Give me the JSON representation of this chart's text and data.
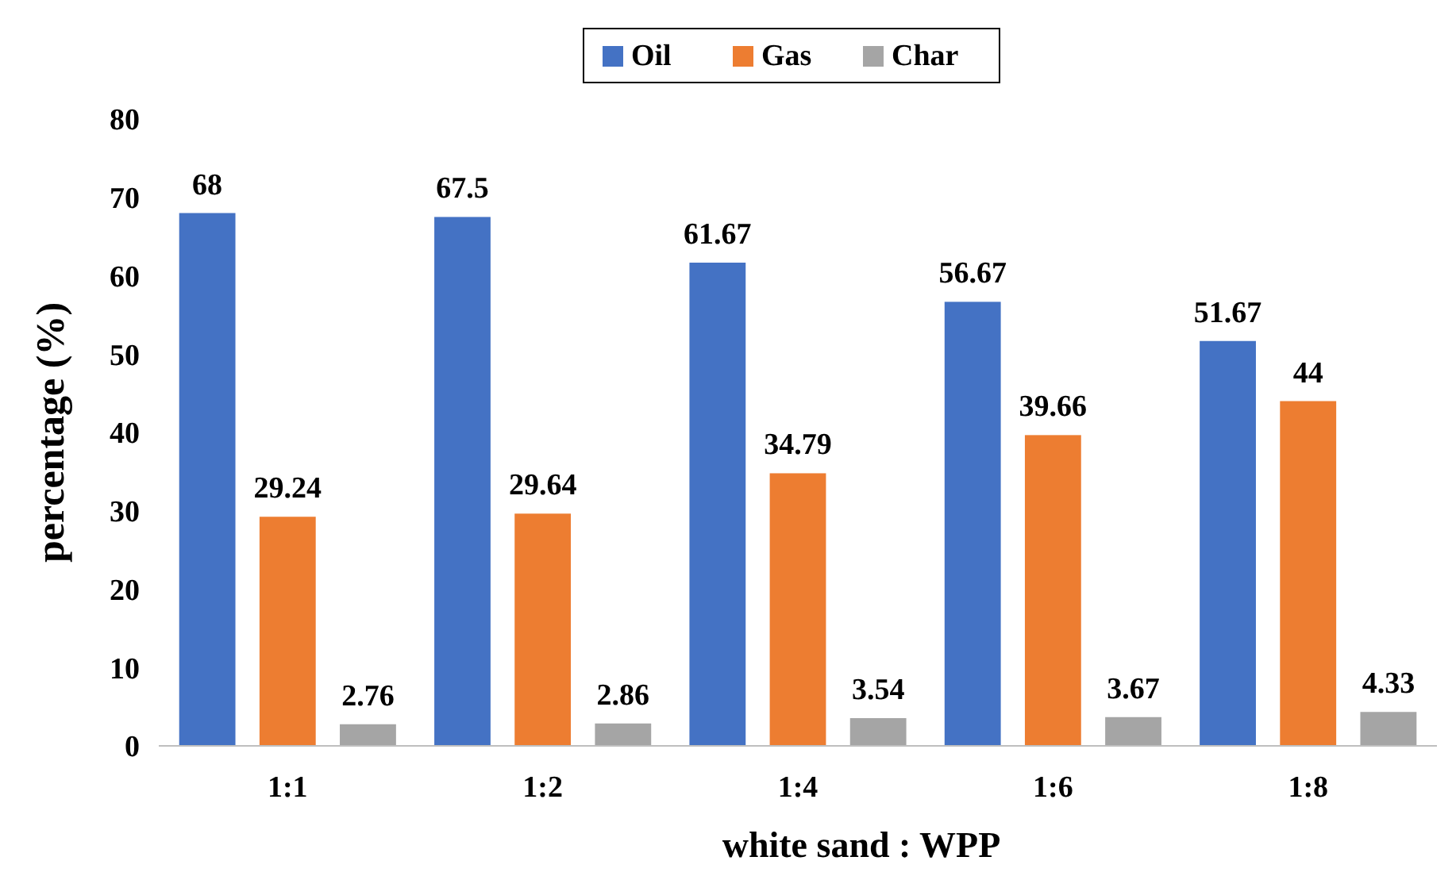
{
  "chart_data": {
    "type": "bar",
    "xlabel": "white sand : WPP",
    "ylabel": "percentage (%)",
    "categories": [
      "1:1",
      "1:2",
      "1:4",
      "1:6",
      "1:8"
    ],
    "series": [
      {
        "name": "Oil",
        "color": "#4472c4",
        "values": [
          68,
          67.5,
          61.67,
          56.67,
          51.67
        ]
      },
      {
        "name": "Gas",
        "color": "#ed7d31",
        "values": [
          29.24,
          29.64,
          34.79,
          39.66,
          44
        ]
      },
      {
        "name": "Char",
        "color": "#a5a5a5",
        "values": [
          2.76,
          2.86,
          3.54,
          3.67,
          4.33
        ]
      }
    ],
    "ylim": [
      0,
      80
    ],
    "yticks": [
      0,
      10,
      20,
      30,
      40,
      50,
      60,
      70,
      80
    ],
    "data_labels": true,
    "legend": "top",
    "grid": false
  }
}
